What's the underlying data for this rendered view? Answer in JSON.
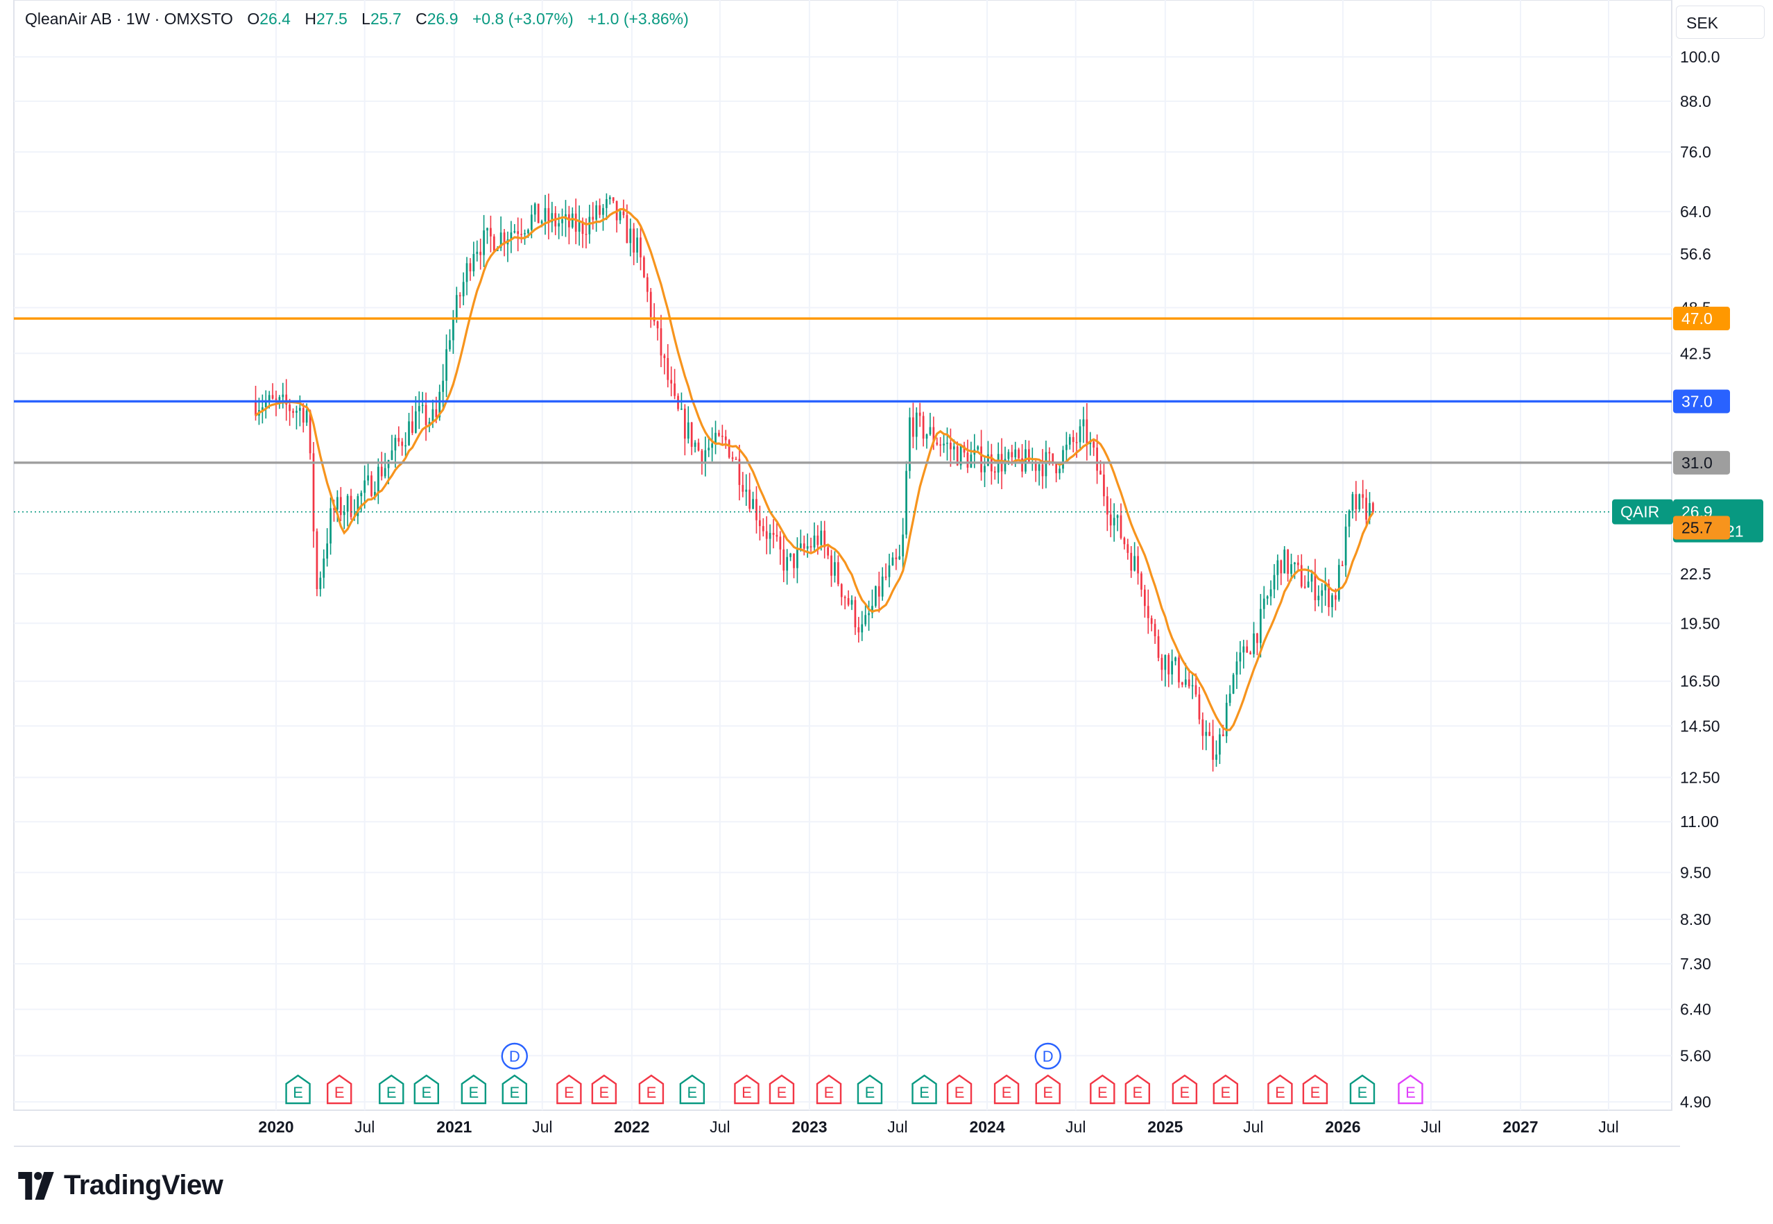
{
  "header": {
    "symbol": "QleanAir AB · 1W · OMXSTO",
    "open_label": "O",
    "open": "26.4",
    "high_label": "H",
    "high": "27.5",
    "low_label": "L",
    "low": "25.7",
    "close_label": "C",
    "close": "26.9",
    "change": "+0.8 (+3.07%)",
    "change2": "+1.0 (+3.86%)"
  },
  "currency": "SEK",
  "brand": "TradingView",
  "colors": {
    "up": "#089981",
    "down": "#f23645",
    "ma": "#f7941d",
    "line_orange": "#ff9800",
    "line_blue": "#2962ff",
    "line_gray": "#9e9e9e"
  },
  "chart_data": {
    "type": "candlestick",
    "interval": "1W",
    "y_scale": "log",
    "y_ticks": [
      "100.0",
      "88.0",
      "76.0",
      "64.0",
      "56.6",
      "48.5",
      "42.5",
      "31.0",
      "22.5",
      "19.50",
      "16.50",
      "14.50",
      "12.50",
      "11.00",
      "9.50",
      "8.30",
      "7.30",
      "6.40",
      "5.60",
      "4.90"
    ],
    "x_ticks": [
      {
        "label": "2020",
        "x": "2020-01-01",
        "bold": true
      },
      {
        "label": "Jul",
        "x": "2020-07-01"
      },
      {
        "label": "2021",
        "x": "2021-01-01",
        "bold": true
      },
      {
        "label": "Jul",
        "x": "2021-07-01"
      },
      {
        "label": "2022",
        "x": "2022-01-01",
        "bold": true
      },
      {
        "label": "Jul",
        "x": "2022-07-01"
      },
      {
        "label": "2023",
        "x": "2023-01-01",
        "bold": true
      },
      {
        "label": "Jul",
        "x": "2023-07-01"
      },
      {
        "label": "2024",
        "x": "2024-01-01",
        "bold": true
      },
      {
        "label": "Jul",
        "x": "2024-07-01"
      },
      {
        "label": "2025",
        "x": "2025-01-01",
        "bold": true
      },
      {
        "label": "Jul",
        "x": "2025-07-01"
      },
      {
        "label": "2026",
        "x": "2026-01-01",
        "bold": true
      },
      {
        "label": "Jul",
        "x": "2026-07-01"
      },
      {
        "label": "2027",
        "x": "2027-01-01",
        "bold": true
      },
      {
        "label": "Jul",
        "x": "2027-07-01"
      }
    ],
    "horizontal_lines": [
      {
        "value": 47.0,
        "label": "47.0",
        "color": "#ff9800"
      },
      {
        "value": 37.0,
        "label": "37.0",
        "color": "#2962ff"
      },
      {
        "value": 31.0,
        "label": "31.0",
        "color": "#9e9e9e"
      }
    ],
    "last_price": {
      "symbol": "QAIR",
      "value": 26.9,
      "label": "26.9",
      "countdown": "01:09:21"
    },
    "ma_last": {
      "value": 25.7,
      "label": "25.7"
    },
    "price_path": [
      [
        "2019-11-20",
        37.0
      ],
      [
        "2020-01-15",
        36.5
      ],
      [
        "2020-03-05",
        36.0
      ],
      [
        "2020-03-25",
        21.5
      ],
      [
        "2020-04-25",
        27.0
      ],
      [
        "2020-06-10",
        27.5
      ],
      [
        "2020-08-15",
        31.0
      ],
      [
        "2020-10-15",
        35.5
      ],
      [
        "2020-11-25",
        35.0
      ],
      [
        "2020-12-22",
        45.0
      ],
      [
        "2021-02-10",
        58.0
      ],
      [
        "2021-04-15",
        60.0
      ],
      [
        "2021-06-15",
        63.0
      ],
      [
        "2021-09-15",
        61.0
      ],
      [
        "2021-11-15",
        65.0
      ],
      [
        "2022-01-10",
        58.0
      ],
      [
        "2022-02-20",
        45.0
      ],
      [
        "2022-04-01",
        36.0
      ],
      [
        "2022-05-20",
        32.0
      ],
      [
        "2022-07-15",
        33.0
      ],
      [
        "2022-09-25",
        26.0
      ],
      [
        "2022-11-15",
        23.0
      ],
      [
        "2023-01-20",
        25.0
      ],
      [
        "2023-03-10",
        21.5
      ],
      [
        "2023-04-20",
        19.0
      ],
      [
        "2023-06-01",
        22.0
      ],
      [
        "2023-07-10",
        23.5
      ],
      [
        "2023-07-25",
        35.0
      ],
      [
        "2023-09-25",
        33.0
      ],
      [
        "2023-11-15",
        31.5
      ],
      [
        "2024-02-15",
        31.0
      ],
      [
        "2024-05-20",
        31.0
      ],
      [
        "2024-07-20",
        34.0
      ],
      [
        "2024-09-10",
        27.0
      ],
      [
        "2024-11-15",
        22.0
      ],
      [
        "2024-12-15",
        18.0
      ],
      [
        "2025-02-15",
        16.5
      ],
      [
        "2025-04-15",
        13.0
      ],
      [
        "2025-05-15",
        16.5
      ],
      [
        "2025-07-15",
        19.5
      ],
      [
        "2025-08-25",
        23.5
      ],
      [
        "2025-10-15",
        22.0
      ],
      [
        "2025-12-15",
        21.0
      ],
      [
        "2026-01-20",
        27.5
      ],
      [
        "2026-03-10",
        26.9
      ]
    ],
    "events": [
      {
        "type": "E",
        "x": "2020-02-15",
        "color": "#089981"
      },
      {
        "type": "E",
        "x": "2020-05-10",
        "color": "#f23645"
      },
      {
        "type": "E",
        "x": "2020-08-25",
        "color": "#089981"
      },
      {
        "type": "E",
        "x": "2020-11-05",
        "color": "#089981"
      },
      {
        "type": "E",
        "x": "2021-02-10",
        "color": "#089981"
      },
      {
        "type": "E",
        "x": "2021-05-05",
        "color": "#089981"
      },
      {
        "type": "E",
        "x": "2021-08-25",
        "color": "#f23645"
      },
      {
        "type": "E",
        "x": "2021-11-05",
        "color": "#f23645"
      },
      {
        "type": "E",
        "x": "2022-02-10",
        "color": "#f23645"
      },
      {
        "type": "E",
        "x": "2022-05-05",
        "color": "#089981"
      },
      {
        "type": "E",
        "x": "2022-08-25",
        "color": "#f23645"
      },
      {
        "type": "E",
        "x": "2022-11-05",
        "color": "#f23645"
      },
      {
        "type": "E",
        "x": "2023-02-10",
        "color": "#f23645"
      },
      {
        "type": "E",
        "x": "2023-05-05",
        "color": "#089981"
      },
      {
        "type": "E",
        "x": "2023-08-25",
        "color": "#089981"
      },
      {
        "type": "E",
        "x": "2023-11-05",
        "color": "#f23645"
      },
      {
        "type": "E",
        "x": "2024-02-10",
        "color": "#f23645"
      },
      {
        "type": "E",
        "x": "2024-05-05",
        "color": "#f23645"
      },
      {
        "type": "E",
        "x": "2024-08-25",
        "color": "#f23645"
      },
      {
        "type": "E",
        "x": "2024-11-05",
        "color": "#f23645"
      },
      {
        "type": "E",
        "x": "2025-02-10",
        "color": "#f23645"
      },
      {
        "type": "E",
        "x": "2025-05-05",
        "color": "#f23645"
      },
      {
        "type": "E",
        "x": "2025-08-25",
        "color": "#f23645"
      },
      {
        "type": "E",
        "x": "2025-11-05",
        "color": "#f23645"
      },
      {
        "type": "E",
        "x": "2026-02-10",
        "color": "#089981"
      },
      {
        "type": "E",
        "x": "2026-05-20",
        "color": "#e040fb"
      },
      {
        "type": "D",
        "x": "2021-05-05",
        "color": "#2962ff"
      },
      {
        "type": "D",
        "x": "2024-05-05",
        "color": "#2962ff"
      }
    ]
  }
}
